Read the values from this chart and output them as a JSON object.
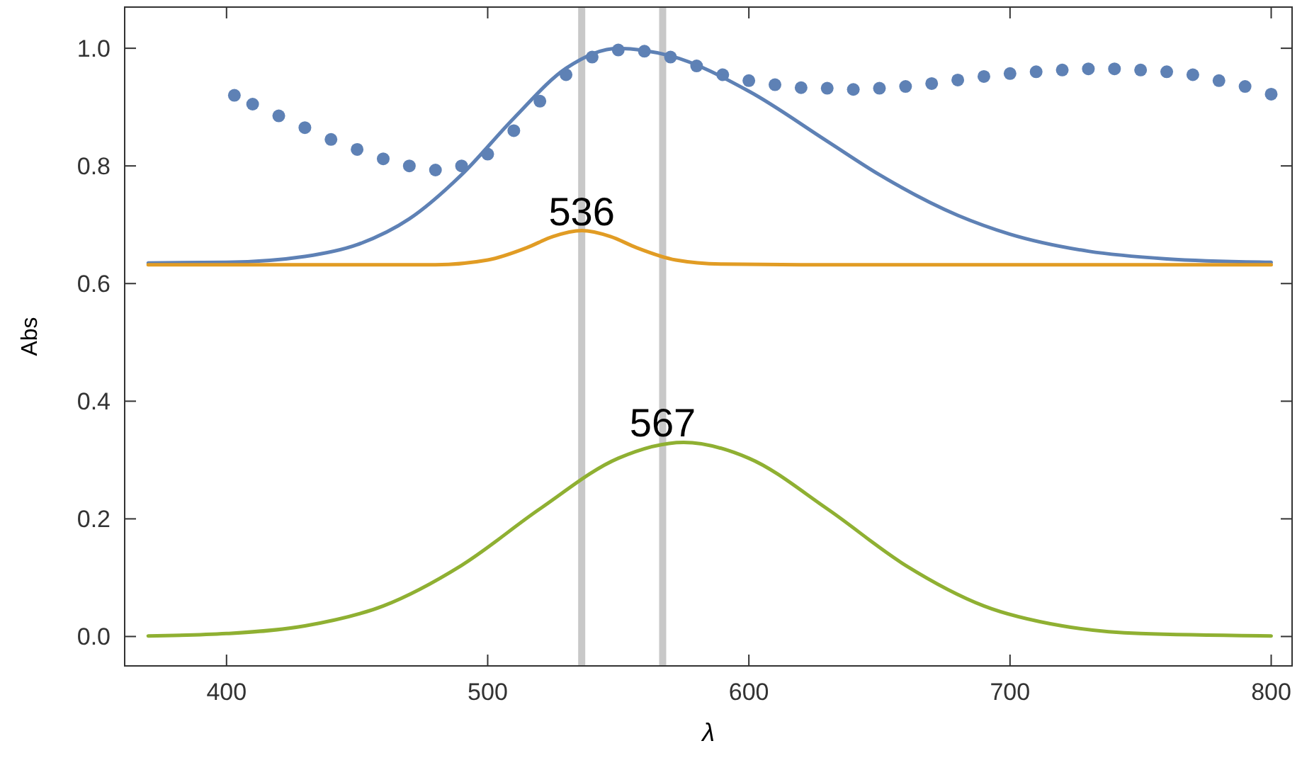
{
  "chart_data": {
    "type": "line",
    "xlabel": "λ",
    "ylabel": "Abs",
    "xlim": [
      361,
      808
    ],
    "ylim": [
      -0.05,
      1.07
    ],
    "xticks": [
      400,
      500,
      600,
      700,
      800
    ],
    "yticks": [
      {
        "value": 0,
        "label": "0.0"
      },
      {
        "value": 0.2,
        "label": "0.2"
      },
      {
        "value": 0.4,
        "label": "0.4"
      },
      {
        "value": 0.6,
        "label": "0.6"
      },
      {
        "value": 0.8,
        "label": "0.8"
      },
      {
        "value": 1,
        "label": "1.0"
      }
    ],
    "grid": false,
    "ref_lines": [
      {
        "axis": "x",
        "value": 536,
        "color": "#c8c8c8"
      },
      {
        "axis": "x",
        "value": 567,
        "color": "#c8c8c8"
      }
    ],
    "annotations": [
      {
        "text": "536",
        "x": 536,
        "y": 0.69
      },
      {
        "text": "567",
        "x": 567,
        "y": 0.33
      }
    ],
    "series": [
      {
        "type": "scatter",
        "color": "#5e81b5",
        "x": [
          403,
          410,
          420,
          430,
          440,
          450,
          460,
          470,
          480,
          490,
          500,
          510,
          520,
          530,
          540,
          550,
          560,
          570,
          580,
          590,
          600,
          610,
          620,
          630,
          640,
          650,
          660,
          670,
          680,
          690,
          700,
          710,
          720,
          730,
          740,
          750,
          760,
          770,
          780,
          790,
          800
        ],
        "values": [
          0.92,
          0.905,
          0.885,
          0.865,
          0.845,
          0.828,
          0.812,
          0.8,
          0.793,
          0.8,
          0.82,
          0.86,
          0.91,
          0.955,
          0.985,
          0.997,
          0.995,
          0.985,
          0.97,
          0.955,
          0.945,
          0.938,
          0.933,
          0.932,
          0.93,
          0.932,
          0.935,
          0.94,
          0.946,
          0.952,
          0.957,
          0.96,
          0.963,
          0.965,
          0.965,
          0.963,
          0.96,
          0.955,
          0.945,
          0.935,
          0.922
        ]
      },
      {
        "color": "#5e81b5",
        "x": [
          370,
          400,
          430,
          450,
          470,
          490,
          510,
          530,
          550,
          570,
          600,
          630,
          650,
          680,
          700,
          730,
          760,
          800
        ],
        "values": [
          0.635,
          0.636,
          0.646,
          0.666,
          0.71,
          0.785,
          0.881,
          0.966,
          1.0,
          0.987,
          0.927,
          0.842,
          0.785,
          0.716,
          0.684,
          0.655,
          0.642,
          0.636
        ]
      },
      {
        "color": "#e19c24",
        "x": [
          370,
          480,
          500,
          515,
          525,
          536,
          547,
          557,
          572,
          590,
          620,
          800
        ],
        "values": [
          0.632,
          0.632,
          0.64,
          0.661,
          0.68,
          0.69,
          0.68,
          0.661,
          0.64,
          0.633,
          0.632,
          0.632
        ]
      },
      {
        "color": "#8fb032",
        "x": [
          370,
          400,
          430,
          460,
          490,
          520,
          550,
          575,
          600,
          630,
          660,
          690,
          720,
          750,
          800
        ],
        "values": [
          0.001,
          0.005,
          0.018,
          0.052,
          0.121,
          0.217,
          0.303,
          0.33,
          0.303,
          0.217,
          0.121,
          0.052,
          0.018,
          0.005,
          0.001
        ]
      }
    ]
  }
}
